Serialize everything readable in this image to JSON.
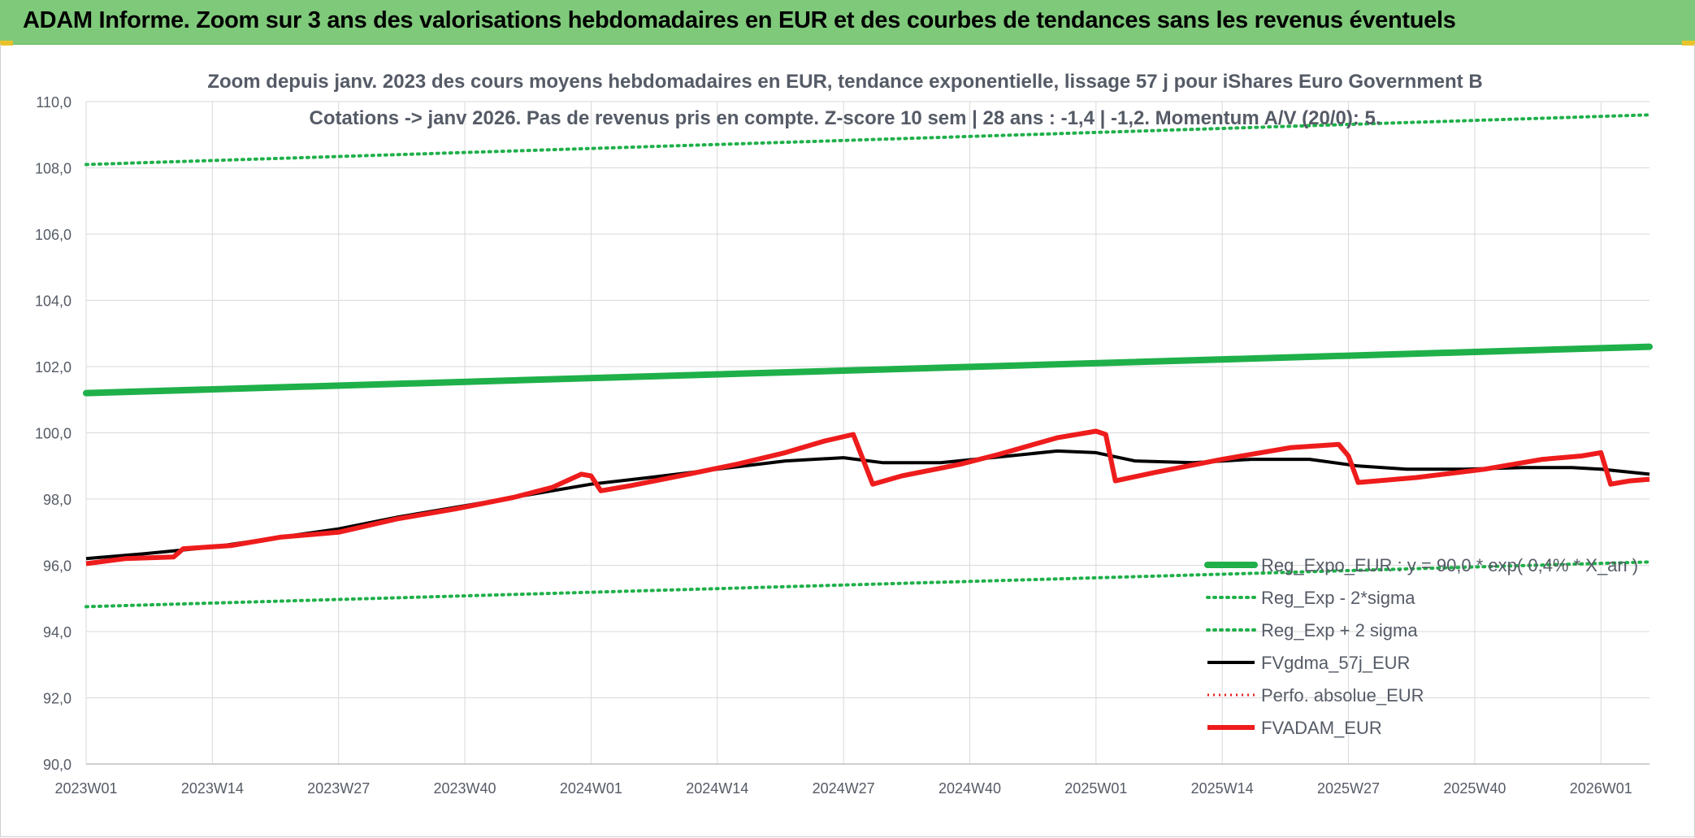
{
  "header": {
    "title": "ADAM Informe. Zoom sur 3 ans des valorisations hebdomadaires en EUR et des courbes de tendances sans les revenus éventuels"
  },
  "colors": {
    "title_bar": "#7ec97a",
    "green": "#1fb04a",
    "red": "#ee1c1c",
    "black": "#000000",
    "grid": "#d9d9d9",
    "text": "#555b66"
  },
  "chart_data": {
    "type": "line",
    "title_line1": "Zoom depuis janv. 2023 des cours moyens hebdomadaires en EUR, tendance exponentielle, lissage 57 j pour iShares Euro Government B",
    "title_line2": "Cotations -> janv 2026. Pas de revenus pris en compte. Z-score 10 sem | 28 ans : -1,4 | -1,2. Momentum A/V (20/0): 5.",
    "ylim": [
      90,
      110
    ],
    "yticks": [
      "90,0",
      "92,0",
      "94,0",
      "96,0",
      "98,0",
      "100,0",
      "102,0",
      "104,0",
      "106,0",
      "108,0",
      "110,0"
    ],
    "x_range_weeks": [
      0,
      161
    ],
    "xticks": [
      {
        "label": "2023W01",
        "w": 0
      },
      {
        "label": "2023W14",
        "w": 13
      },
      {
        "label": "2023W27",
        "w": 26
      },
      {
        "label": "2023W40",
        "w": 39
      },
      {
        "label": "2024W01",
        "w": 52
      },
      {
        "label": "2024W14",
        "w": 65
      },
      {
        "label": "2024W27",
        "w": 78
      },
      {
        "label": "2024W40",
        "w": 91
      },
      {
        "label": "2025W01",
        "w": 104
      },
      {
        "label": "2025W14",
        "w": 117
      },
      {
        "label": "2025W27",
        "w": 130
      },
      {
        "label": "2025W40",
        "w": 143
      },
      {
        "label": "2026W01",
        "w": 156
      }
    ],
    "legend_position": "bottom-right",
    "series": [
      {
        "name": "Reg_Expo_EUR : y = 90,0 * exp( 0,4% * X_an )",
        "style": "thick-green",
        "points": [
          [
            0,
            101.2
          ],
          [
            161,
            102.6
          ]
        ]
      },
      {
        "name": "Reg_Exp - 2*sigma",
        "style": "dotted-green",
        "points": [
          [
            0,
            94.75
          ],
          [
            161,
            96.1
          ]
        ]
      },
      {
        "name": "Reg_Exp + 2 sigma",
        "style": "dotted-green",
        "points": [
          [
            0,
            108.1
          ],
          [
            161,
            109.6
          ]
        ]
      },
      {
        "name": "FVgdma_57j_EUR",
        "style": "black",
        "points": [
          [
            0,
            96.2
          ],
          [
            6,
            96.35
          ],
          [
            13,
            96.55
          ],
          [
            20,
            96.85
          ],
          [
            26,
            97.1
          ],
          [
            32,
            97.45
          ],
          [
            39,
            97.8
          ],
          [
            45,
            98.1
          ],
          [
            52,
            98.45
          ],
          [
            58,
            98.65
          ],
          [
            65,
            98.9
          ],
          [
            72,
            99.15
          ],
          [
            78,
            99.25
          ],
          [
            82,
            99.1
          ],
          [
            88,
            99.1
          ],
          [
            95,
            99.3
          ],
          [
            100,
            99.45
          ],
          [
            104,
            99.4
          ],
          [
            108,
            99.15
          ],
          [
            114,
            99.1
          ],
          [
            120,
            99.2
          ],
          [
            126,
            99.2
          ],
          [
            131,
            99.0
          ],
          [
            136,
            98.9
          ],
          [
            142,
            98.9
          ],
          [
            148,
            98.95
          ],
          [
            153,
            98.95
          ],
          [
            156,
            98.9
          ],
          [
            161,
            98.75
          ]
        ]
      },
      {
        "name": "Perfo. absolue_EUR",
        "style": "dotted-red",
        "points": []
      },
      {
        "name": "FVADAM_EUR",
        "style": "thick-red",
        "points": [
          [
            0,
            96.05
          ],
          [
            4,
            96.2
          ],
          [
            9,
            96.25
          ],
          [
            10,
            96.5
          ],
          [
            15,
            96.6
          ],
          [
            20,
            96.85
          ],
          [
            26,
            97.0
          ],
          [
            32,
            97.4
          ],
          [
            38,
            97.7
          ],
          [
            44,
            98.05
          ],
          [
            48,
            98.35
          ],
          [
            51,
            98.75
          ],
          [
            52,
            98.7
          ],
          [
            53,
            98.25
          ],
          [
            56,
            98.4
          ],
          [
            62,
            98.75
          ],
          [
            67,
            99.05
          ],
          [
            72,
            99.4
          ],
          [
            76,
            99.75
          ],
          [
            79,
            99.95
          ],
          [
            81,
            98.45
          ],
          [
            84,
            98.7
          ],
          [
            90,
            99.05
          ],
          [
            94,
            99.35
          ],
          [
            100,
            99.85
          ],
          [
            104,
            100.05
          ],
          [
            105,
            99.95
          ],
          [
            106,
            98.55
          ],
          [
            110,
            98.8
          ],
          [
            117,
            99.2
          ],
          [
            124,
            99.55
          ],
          [
            129,
            99.65
          ],
          [
            130,
            99.3
          ],
          [
            131,
            98.5
          ],
          [
            137,
            98.65
          ],
          [
            144,
            98.9
          ],
          [
            150,
            99.2
          ],
          [
            154,
            99.3
          ],
          [
            156,
            99.4
          ],
          [
            157,
            98.45
          ],
          [
            159,
            98.55
          ],
          [
            161,
            98.6
          ]
        ]
      }
    ]
  }
}
